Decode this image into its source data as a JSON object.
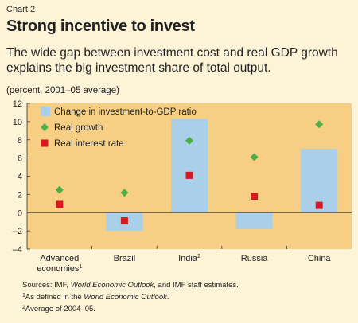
{
  "header": {
    "label": "Chart 2",
    "title": "Strong incentive to invest",
    "subtitle": "The wide gap between investment cost and real GDP growth explains the big investment share of total output.",
    "units": "(percent, 2001–05 average)"
  },
  "footer": {
    "sources_prefix": "Sources: IMF, ",
    "sources_italic": "World Economic Outlook",
    "sources_suffix": ", and IMF staff estimates.",
    "note1_mark": "1",
    "note1_prefix": "As defined in the ",
    "note1_italic": "World Economic Outlook",
    "note1_suffix": ".",
    "note2_mark": "2",
    "note2_text": "Average of 2004–05."
  },
  "colors": {
    "plot_bg": "#f6cf84",
    "bar": "#a9cfe9",
    "growth": "#4caf45",
    "interest": "#d7191f",
    "page_bg": "#fdf4d8"
  },
  "chart_data": {
    "type": "bar",
    "categories": [
      "Advanced economies",
      "Brazil",
      "India",
      "Russia",
      "China"
    ],
    "category_labels": [
      {
        "lines": [
          "Advanced",
          "economies"
        ],
        "sup": "1"
      },
      {
        "lines": [
          "Brazil"
        ],
        "sup": ""
      },
      {
        "lines": [
          "India"
        ],
        "sup": "2"
      },
      {
        "lines": [
          "Russia"
        ],
        "sup": ""
      },
      {
        "lines": [
          "China"
        ],
        "sup": ""
      }
    ],
    "series": [
      {
        "name": "Change in investment-to-GDP ratio",
        "type": "bar",
        "values": [
          0,
          -2.0,
          10.3,
          -1.8,
          7.0
        ],
        "color": "#a9cfe9",
        "marker": "bar"
      },
      {
        "name": "Real growth",
        "type": "scatter",
        "values": [
          2.5,
          2.2,
          7.9,
          6.1,
          9.7
        ],
        "color": "#4caf45",
        "marker": "diamond"
      },
      {
        "name": "Real interest rate",
        "type": "scatter",
        "values": [
          0.9,
          -0.9,
          4.1,
          1.8,
          0.8
        ],
        "color": "#d7191f",
        "marker": "square"
      }
    ],
    "ylim": [
      -4,
      12
    ],
    "yticks": [
      -4,
      -2,
      0,
      2,
      4,
      6,
      8,
      10,
      12
    ],
    "ytick_labels": [
      "–4",
      "–2",
      "0",
      "2",
      "4",
      "6",
      "8",
      "10",
      "12"
    ],
    "legend_position": "top-left",
    "grid": false
  }
}
